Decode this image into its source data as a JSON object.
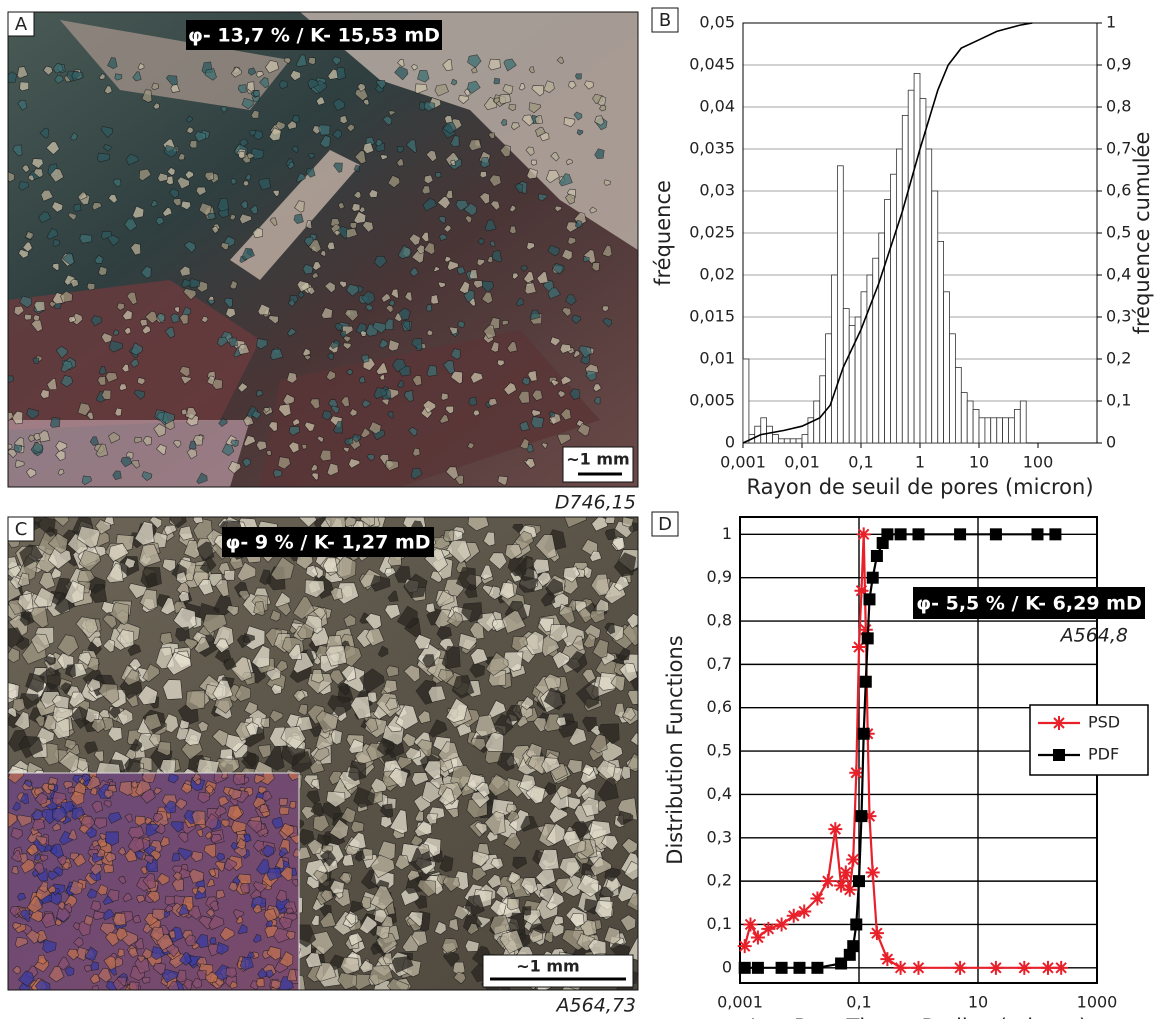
{
  "photos": [
    {
      "label": "A",
      "annotation": "φ- 13,7 % / K- 15,53 mD",
      "scale": "~1 mm",
      "sample": "D746,15"
    },
    {
      "label": "C",
      "annotation": "φ- 9 % / K- 1,27 mD",
      "scale": "~1 mm",
      "sample": "A564,73"
    }
  ],
  "chart_data": [
    {
      "type": "histogram",
      "panel_label": "B",
      "x_label": "Rayon de seuil de pores (micron)",
      "y_label": "fréquence",
      "y2_label": "fréquence cumulée",
      "log_x": true,
      "grid": true,
      "color": "#ffffff",
      "bins": [
        0.001,
        0.00126,
        0.00158,
        0.002,
        0.00251,
        0.00316,
        0.00398,
        0.00501,
        0.00631,
        0.00794,
        0.01,
        0.0126,
        0.0158,
        0.02,
        0.0251,
        0.0316,
        0.0398,
        0.0501,
        0.0631,
        0.0794,
        0.1,
        0.126,
        0.158,
        0.2,
        0.251,
        0.316,
        0.398,
        0.501,
        0.631,
        0.794,
        1,
        1.26,
        1.58,
        2,
        2.51,
        3.16,
        3.98,
        5.01,
        6.31,
        7.94,
        10,
        12.6,
        15.8,
        20,
        25.1,
        31.6,
        39.8,
        50.1,
        63.1
      ],
      "values": [
        0.01,
        0.001,
        0.002,
        0.003,
        0.002,
        0.001,
        0.0005,
        0.0005,
        0.0005,
        0.0005,
        0.001,
        0.003,
        0.005,
        0.008,
        0.013,
        0.02,
        0.033,
        0.016,
        0.014,
        0.015,
        0.018,
        0.02,
        0.022,
        0.025,
        0.029,
        0.032,
        0.035,
        0.039,
        0.042,
        0.044,
        0.041,
        0.035,
        0.03,
        0.024,
        0.018,
        0.013,
        0.009,
        0.006,
        0.005,
        0.004,
        0.003,
        0.003,
        0.003,
        0.003,
        0.003,
        0.003,
        0.004,
        0.005
      ],
      "series": [
        {
          "color": "#000000",
          "axis": "y2",
          "x": [
            0.001,
            0.002,
            0.005,
            0.01,
            0.02,
            0.03,
            0.05,
            0.1,
            0.2,
            0.5,
            1,
            2,
            3,
            5,
            10,
            20,
            50,
            80
          ],
          "values": [
            0,
            0.02,
            0.03,
            0.04,
            0.06,
            0.09,
            0.18,
            0.27,
            0.38,
            0.55,
            0.7,
            0.84,
            0.9,
            0.94,
            0.96,
            0.98,
            0.995,
            1
          ]
        }
      ],
      "xlim": [
        0.001,
        1000
      ],
      "xticks": [
        {
          "value": 0.001,
          "label": "0,001"
        },
        {
          "value": 0.01,
          "label": "0,01"
        },
        {
          "value": 0.1,
          "label": "0,1"
        },
        1,
        10,
        100
      ],
      "ylim": [
        0,
        0.05
      ],
      "yticks": [
        0,
        {
          "value": 0.005,
          "label": "0,005"
        },
        {
          "value": 0.01,
          "label": "0,01"
        },
        {
          "value": 0.015,
          "label": "0,015"
        },
        {
          "value": 0.02,
          "label": "0,02"
        },
        {
          "value": 0.025,
          "label": "0,025"
        },
        {
          "value": 0.03,
          "label": "0,03"
        },
        {
          "value": 0.035,
          "label": "0,035"
        },
        {
          "value": 0.04,
          "label": "0,04"
        },
        {
          "value": 0.045,
          "label": "0,045"
        },
        {
          "value": 0.05,
          "label": "0,05"
        }
      ],
      "y2lim": [
        0,
        1
      ],
      "y2ticks": [
        0,
        {
          "value": 0.1,
          "label": "0,1"
        },
        {
          "value": 0.2,
          "label": "0,2"
        },
        {
          "value": 0.3,
          "label": "0,3"
        },
        {
          "value": 0.4,
          "label": "0,4"
        },
        {
          "value": 0.5,
          "label": "0,5"
        },
        {
          "value": 0.6,
          "label": "0,6"
        },
        {
          "value": 0.7,
          "label": "0,7"
        },
        {
          "value": 0.8,
          "label": "0,8"
        },
        {
          "value": 0.9,
          "label": "0,9"
        },
        1
      ]
    },
    {
      "type": "line",
      "panel_label": "D",
      "x_label": "Log Pore Throat Radius (micron)",
      "y_label": "Distribution Functions",
      "annotation": "φ- 5,5 % / K- 6,29 mD",
      "sample": "A564,8",
      "log_x": true,
      "grid": true,
      "legend": "right",
      "series": [
        {
          "name": "PSD",
          "color": "#e8202a",
          "marker": "asterisk",
          "x": [
            0.0012,
            0.0015,
            0.002,
            0.003,
            0.005,
            0.008,
            0.012,
            0.02,
            0.03,
            0.04,
            0.05,
            0.06,
            0.07,
            0.08,
            0.09,
            0.1,
            0.11,
            0.12,
            0.13,
            0.14,
            0.15,
            0.17,
            0.2,
            0.3,
            0.5,
            1,
            5,
            20,
            60,
            150,
            250
          ],
          "values": [
            0.05,
            0.1,
            0.07,
            0.09,
            0.1,
            0.12,
            0.13,
            0.16,
            0.2,
            0.32,
            0.19,
            0.22,
            0.18,
            0.25,
            0.45,
            0.74,
            0.87,
            1,
            0.78,
            0.54,
            0.35,
            0.22,
            0.08,
            0.02,
            0,
            0,
            0,
            0,
            0,
            0,
            0
          ]
        },
        {
          "name": "PDF",
          "color": "#000000",
          "marker": "square",
          "x": [
            0.0012,
            0.002,
            0.005,
            0.01,
            0.02,
            0.05,
            0.07,
            0.08,
            0.09,
            0.1,
            0.11,
            0.12,
            0.13,
            0.14,
            0.15,
            0.17,
            0.2,
            0.25,
            0.3,
            0.5,
            1,
            5,
            20,
            100,
            200
          ],
          "values": [
            0,
            0,
            0,
            0,
            0,
            0.01,
            0.03,
            0.05,
            0.1,
            0.2,
            0.35,
            0.54,
            0.66,
            0.76,
            0.85,
            0.9,
            0.95,
            0.98,
            1,
            1,
            1,
            1,
            1,
            1,
            1
          ]
        }
      ],
      "xlim": [
        0.001,
        1000
      ],
      "xticks": [
        {
          "value": 0.001,
          "label": "0,001"
        },
        {
          "value": 0.1,
          "label": "0,1"
        },
        10,
        1000
      ],
      "ylim": [
        -0.035,
        1.04
      ],
      "yticks": [
        0,
        {
          "value": 0.1,
          "label": "0,1"
        },
        {
          "value": 0.2,
          "label": "0,2"
        },
        {
          "value": 0.3,
          "label": "0,3"
        },
        {
          "value": 0.4,
          "label": "0,4"
        },
        {
          "value": 0.5,
          "label": "0,5"
        },
        {
          "value": 0.6,
          "label": "0,6"
        },
        {
          "value": 0.7,
          "label": "0,7"
        },
        {
          "value": 0.8,
          "label": "0,8"
        },
        {
          "value": 0.9,
          "label": "0,9"
        },
        1
      ]
    }
  ]
}
